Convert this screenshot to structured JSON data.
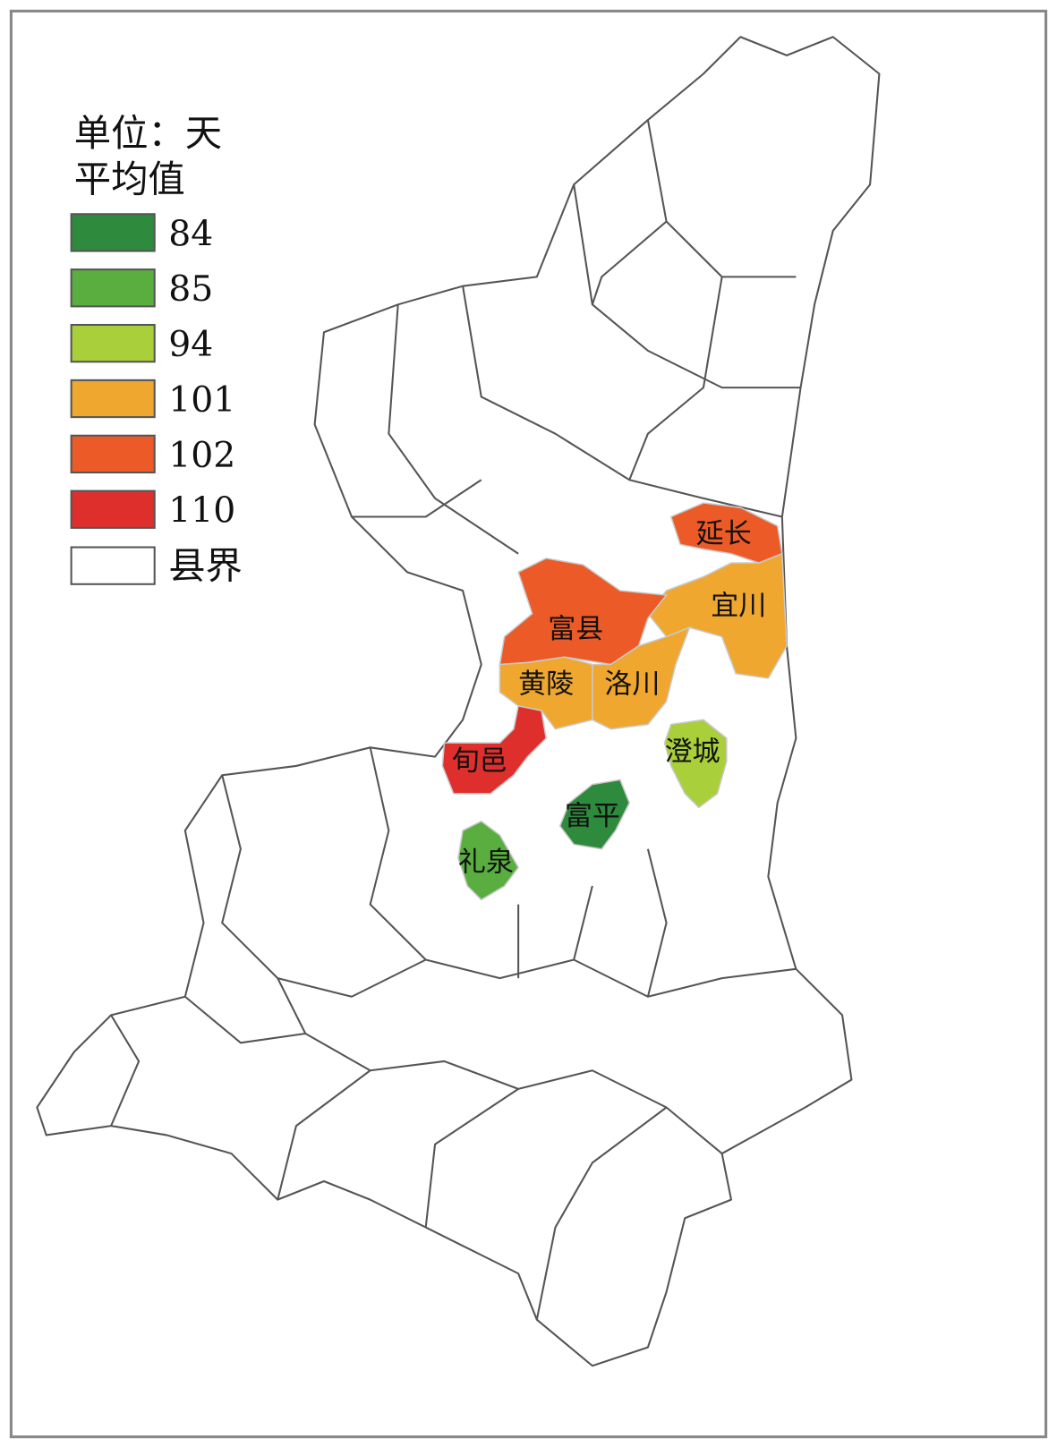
{
  "legend": {
    "title": "单位：天",
    "subtitle": "平均值",
    "items": [
      {
        "value": 84,
        "color": "#2e8a3c"
      },
      {
        "value": 85,
        "color": "#59ae3f"
      },
      {
        "value": 94,
        "color": "#a9cf3b"
      },
      {
        "value": 101,
        "color": "#efa72f"
      },
      {
        "value": 102,
        "color": "#ec5a27"
      },
      {
        "value": 110,
        "color": "#df2f2d"
      }
    ],
    "boundary_label": "县界"
  },
  "regions": [
    {
      "name": "延长",
      "value": 102
    },
    {
      "name": "宜川",
      "value": 101
    },
    {
      "name": "富县",
      "value": 102
    },
    {
      "name": "黄陵",
      "value": 101
    },
    {
      "name": "洛川",
      "value": 101
    },
    {
      "name": "旬邑",
      "value": 110
    },
    {
      "name": "澄城",
      "value": 94
    },
    {
      "name": "富平",
      "value": 84
    },
    {
      "name": "礼泉",
      "value": 85
    }
  ]
}
